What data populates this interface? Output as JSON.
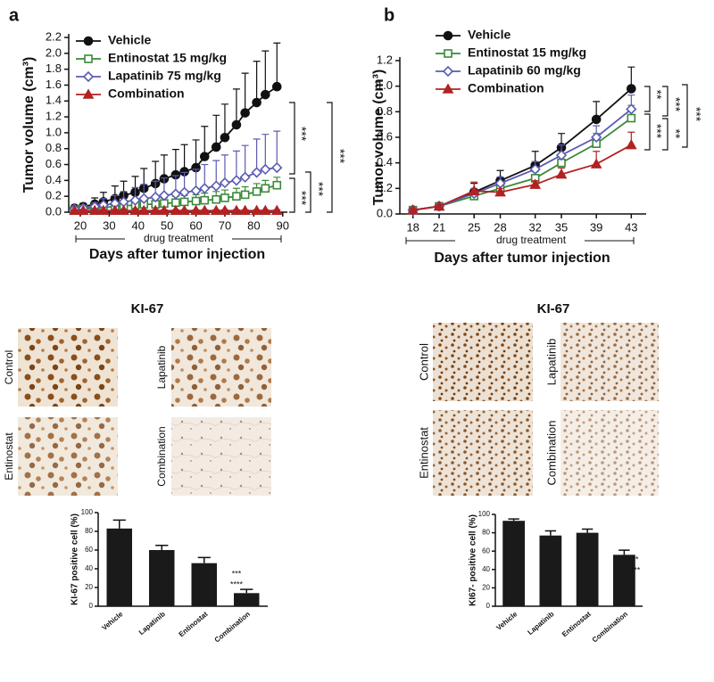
{
  "panels": [
    "a",
    "b"
  ],
  "micrographs": [
    {
      "title": "KI-67",
      "labels": [
        "Control",
        "Lapatinib",
        "Entinostat",
        "Combination"
      ]
    },
    {
      "title": "KI-67",
      "labels": [
        "Control",
        "Lapatinib",
        "Entinostat",
        "Combination"
      ]
    }
  ],
  "chart_data": [
    {
      "type": "line",
      "xlabel": "Days after tumor injection",
      "ylabel": "Tumor volume (cm³)",
      "x": [
        18,
        21,
        25,
        28,
        32,
        35,
        39,
        42,
        46,
        49,
        53,
        56,
        60,
        63,
        67,
        70,
        74,
        77,
        81,
        84,
        88
      ],
      "xlim": [
        16,
        91
      ],
      "xticks": [
        20,
        30,
        40,
        50,
        60,
        70,
        80,
        90
      ],
      "ylim": [
        0,
        2.2
      ],
      "yticks": [
        {
          "value": 0,
          "label": "0.0"
        },
        0.2,
        0.4,
        0.6,
        0.8,
        {
          "value": 1,
          "label": "1.0"
        },
        1.2,
        1.4,
        1.6,
        1.8,
        {
          "value": 2,
          "label": "2.0"
        },
        2.2
      ],
      "series": [
        {
          "name": "Vehicle",
          "color": "#111111",
          "marker": "circle",
          "filled": true,
          "values": [
            0.05,
            0.07,
            0.1,
            0.13,
            0.17,
            0.21,
            0.25,
            0.3,
            0.36,
            0.42,
            0.47,
            0.51,
            0.56,
            0.7,
            0.82,
            0.94,
            1.1,
            1.25,
            1.38,
            1.48,
            1.58
          ],
          "errors": [
            0.02,
            0.04,
            0.08,
            0.12,
            0.16,
            0.18,
            0.2,
            0.25,
            0.28,
            0.3,
            0.32,
            0.34,
            0.35,
            0.38,
            0.4,
            0.42,
            0.45,
            0.5,
            0.52,
            0.55,
            0.55
          ]
        },
        {
          "name": "Entinostat 15 mg/kg",
          "color": "#3a8a3a",
          "marker": "square",
          "filled": false,
          "values": [
            0.03,
            0.04,
            0.05,
            0.06,
            0.07,
            0.08,
            0.09,
            0.1,
            0.1,
            0.11,
            0.12,
            0.13,
            0.14,
            0.15,
            0.16,
            0.18,
            0.2,
            0.22,
            0.26,
            0.3,
            0.34
          ],
          "errors": [
            0.01,
            0.02,
            0.03,
            0.04,
            0.05,
            0.05,
            0.06,
            0.06,
            0.07,
            0.07,
            0.08,
            0.08,
            0.08,
            0.09,
            0.1,
            0.1,
            0.1,
            0.1,
            0.1,
            0.1,
            0.1
          ]
        },
        {
          "name": "Lapatinib 75 mg/kg",
          "color": "#5b5bb5",
          "marker": "diamond",
          "filled": false,
          "values": [
            0.04,
            0.05,
            0.07,
            0.09,
            0.11,
            0.13,
            0.15,
            0.17,
            0.19,
            0.21,
            0.23,
            0.25,
            0.27,
            0.3,
            0.33,
            0.37,
            0.4,
            0.44,
            0.5,
            0.54,
            0.56
          ],
          "errors": [
            0.02,
            0.03,
            0.05,
            0.08,
            0.1,
            0.13,
            0.16,
            0.18,
            0.2,
            0.22,
            0.23,
            0.25,
            0.27,
            0.3,
            0.32,
            0.35,
            0.37,
            0.4,
            0.42,
            0.44,
            0.46
          ]
        },
        {
          "name": "Combination",
          "color": "#b22222",
          "marker": "triangle",
          "filled": true,
          "values": [
            0.02,
            0.02,
            0.02,
            0.02,
            0.02,
            0.02,
            0.02,
            0.02,
            0.02,
            0.02,
            0.02,
            0.02,
            0.02,
            0.02,
            0.02,
            0.02,
            0.02,
            0.02,
            0.02,
            0.02,
            0.02
          ],
          "errors": [
            0.01,
            0.01,
            0.01,
            0.01,
            0.01,
            0.01,
            0.01,
            0.01,
            0.01,
            0.01,
            0.01,
            0.01,
            0.01,
            0.01,
            0.01,
            0.01,
            0.01,
            0.01,
            0.01,
            0.01,
            0.01
          ]
        }
      ],
      "annotations": [
        "***",
        "***",
        "***",
        "***",
        "drug treatment"
      ]
    },
    {
      "type": "line",
      "xlabel": "Days after tumor injection",
      "ylabel": "Tumor volume (cm³)",
      "x": [
        18,
        21,
        25,
        28,
        32,
        35,
        39,
        43
      ],
      "xlim": [
        16.5,
        44.5
      ],
      "xticks": [
        18,
        21,
        25,
        28,
        32,
        35,
        39,
        43
      ],
      "ylim": [
        0,
        1.2
      ],
      "yticks": [
        {
          "value": 0,
          "label": "0.0"
        },
        0.2,
        0.4,
        0.6,
        0.8,
        {
          "value": 1,
          "label": "1.0"
        },
        1.2
      ],
      "series": [
        {
          "name": "Vehicle",
          "color": "#111111",
          "marker": "circle",
          "filled": true,
          "values": [
            0.03,
            0.06,
            0.17,
            0.26,
            0.38,
            0.52,
            0.74,
            0.98
          ],
          "errors": [
            0.01,
            0.01,
            0.07,
            0.08,
            0.11,
            0.11,
            0.14,
            0.17
          ]
        },
        {
          "name": "Entinostat 15 mg/kg",
          "color": "#3a8a3a",
          "marker": "square",
          "filled": false,
          "values": [
            0.03,
            0.06,
            0.14,
            0.2,
            0.28,
            0.4,
            0.55,
            0.75
          ],
          "errors": [
            0.01,
            0.01,
            0.03,
            0.04,
            0.05,
            0.06,
            0.08,
            0.1
          ]
        },
        {
          "name": "Lapatinib 60 mg/kg",
          "color": "#5b5bb5",
          "marker": "diamond",
          "filled": false,
          "values": [
            0.03,
            0.06,
            0.16,
            0.24,
            0.35,
            0.46,
            0.6,
            0.82
          ],
          "errors": [
            0.01,
            0.01,
            0.04,
            0.05,
            0.06,
            0.08,
            0.09,
            0.11
          ]
        },
        {
          "name": "Combination",
          "color": "#b22222",
          "marker": "triangle",
          "filled": true,
          "values": [
            0.03,
            0.06,
            0.18,
            0.17,
            0.23,
            0.31,
            0.39,
            0.54
          ],
          "errors": [
            0.01,
            0.01,
            0.07,
            0.03,
            0.03,
            0.05,
            0.1,
            0.1
          ]
        }
      ],
      "annotations": [
        "**",
        "***",
        "***",
        "**",
        "***",
        "drug treatment"
      ]
    },
    {
      "type": "bar",
      "ylabel": "KI-67 positive cell (%)",
      "color": "#1a1a1a",
      "categories": [
        "Vehicle",
        "Lapatinib",
        "Entinostat",
        "Combination"
      ],
      "values": [
        83,
        60,
        46,
        14
      ],
      "errors": [
        9,
        5,
        6,
        4
      ],
      "ylim": [
        0,
        100
      ],
      "yticks": [
        0,
        20,
        40,
        60,
        80,
        100
      ],
      "annotations": [
        "***",
        "****"
      ]
    },
    {
      "type": "bar",
      "ylabel": "KI67- positive cell (%)",
      "color": "#1a1a1a",
      "categories": [
        "Vehicle",
        "Lapatinib",
        "Entinostat",
        "Combination"
      ],
      "values": [
        93,
        77,
        80,
        56
      ],
      "errors": [
        2,
        5,
        4,
        5
      ],
      "ylim": [
        0,
        100
      ],
      "yticks": [
        0,
        20,
        40,
        60,
        80,
        100
      ],
      "annotations": [
        "**",
        "***"
      ]
    }
  ]
}
